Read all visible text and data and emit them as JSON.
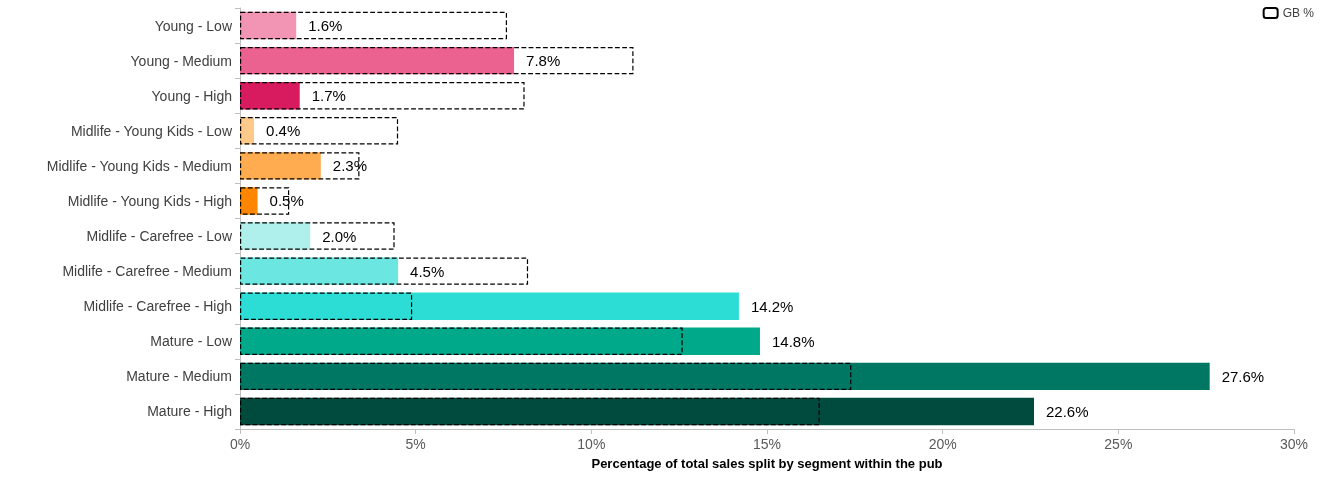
{
  "chart_data": {
    "type": "bar",
    "orientation": "horizontal",
    "xlabel": "Percentage of total sales split by segment within the pub",
    "categories": [
      "Young - Low",
      "Young - Medium",
      "Young - High",
      "Midlife - Young Kids - Low",
      "Midlife - Young Kids - Medium",
      "Midlife - Young Kids - High",
      "Midlife - Carefree - Low",
      "Midlife - Carefree - Medium",
      "Midlife - Carefree - High",
      "Mature - Low",
      "Mature - Medium",
      "Mature - High"
    ],
    "series": [
      {
        "values": [
          1.6,
          7.8,
          1.7,
          0.4,
          2.3,
          0.5,
          2.0,
          4.5,
          14.2,
          14.8,
          27.6,
          22.6
        ],
        "colors": [
          "#f294b4",
          "#eb6290",
          "#d81b5e",
          "#ffc98a",
          "#ffab50",
          "#ff8600",
          "#b0f0ec",
          "#6be6e0",
          "#2cddd6",
          "#00a98a",
          "#007763",
          "#004b3d"
        ],
        "value_labels": [
          "1.6%",
          "7.8%",
          "1.7%",
          "0.4%",
          "2.3%",
          "0.5%",
          "2.0%",
          "4.5%",
          "14.2%",
          "14.8%",
          "27.6%",
          "22.6%"
        ]
      },
      {
        "name": "GB %",
        "color": "#000000",
        "line_style": "dashed",
        "values": [
          7.6,
          11.2,
          8.1,
          4.5,
          3.4,
          1.4,
          4.4,
          8.2,
          4.9,
          12.6,
          17.4,
          16.5
        ]
      }
    ],
    "xlim": [
      0,
      30
    ],
    "xticks": [
      {
        "value": 0,
        "label": "0%"
      },
      {
        "value": 5,
        "label": "5%"
      },
      {
        "value": 10,
        "label": "10%"
      },
      {
        "value": 15,
        "label": "15%"
      },
      {
        "value": 20,
        "label": "20%"
      },
      {
        "value": 25,
        "label": "25%"
      },
      {
        "value": 30,
        "label": "30%"
      }
    ],
    "legend": "top right",
    "grid": false
  }
}
